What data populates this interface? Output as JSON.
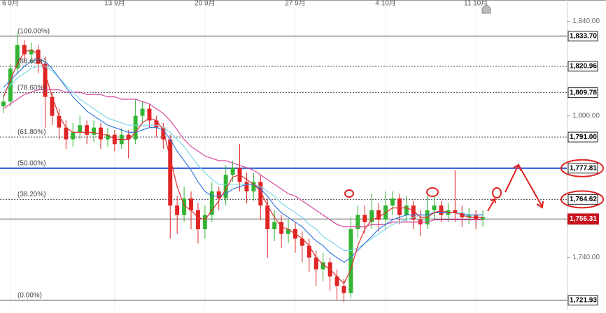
{
  "chart_data": {
    "type": "candlestick",
    "categories": [
      null,
      "6 9月",
      null,
      null,
      null,
      null,
      null,
      null,
      null,
      null,
      null,
      null,
      null,
      null,
      null,
      null,
      "13 9月",
      null,
      null,
      null,
      null,
      null,
      null,
      null,
      null,
      null,
      null,
      null,
      null,
      "20 9月",
      null,
      null,
      null,
      null,
      null,
      null,
      null,
      null,
      null,
      null,
      null,
      null,
      "27 9月",
      null,
      null,
      null,
      null,
      null,
      null,
      null,
      null,
      null,
      null,
      null,
      null,
      "4 10月",
      null,
      null,
      null,
      null,
      null,
      null,
      null,
      null,
      null,
      null,
      null,
      null,
      "11 10月",
      null
    ],
    "open": [
      1804,
      1806,
      1820,
      1830,
      1826,
      1828,
      1822,
      1808,
      1800,
      1795,
      1790,
      1793,
      1796,
      1792,
      1795,
      1790,
      1792,
      1788,
      1792,
      1790,
      1800,
      1803,
      1798,
      1795,
      1790,
      1762,
      1758,
      1765,
      1760,
      1752,
      1758,
      1768,
      1765,
      1775,
      1778,
      1772,
      1768,
      1772,
      1762,
      1752,
      1755,
      1750,
      1752,
      1748,
      1745,
      1740,
      1735,
      1738,
      1732,
      1728,
      1725,
      1752,
      1758,
      1755,
      1760,
      1756,
      1762,
      1765,
      1758,
      1762,
      1756,
      1754,
      1760,
      1762,
      1758,
      1760,
      1759,
      1757,
      1758,
      1756
    ],
    "high": [
      1809,
      1822,
      1835,
      1832,
      1831,
      1830,
      1825,
      1810,
      1803,
      1798,
      1797,
      1800,
      1798,
      1798,
      1797,
      1795,
      1794,
      1795,
      1794,
      1807,
      1806,
      1805,
      1800,
      1797,
      1792,
      1766,
      1770,
      1768,
      1763,
      1762,
      1772,
      1770,
      1779,
      1781,
      1788,
      1776,
      1776,
      1775,
      1765,
      1760,
      1758,
      1756,
      1755,
      1751,
      1748,
      1743,
      1742,
      1740,
      1735,
      1731,
      1757,
      1762,
      1762,
      1767,
      1763,
      1768,
      1768,
      1767,
      1766,
      1764,
      1760,
      1766,
      1766,
      1764,
      1763,
      1777,
      1762,
      1761,
      1760,
      1760
    ],
    "low": [
      1801,
      1804,
      1818,
      1823,
      1822,
      1818,
      1795,
      1796,
      1790,
      1786,
      1787,
      1790,
      1788,
      1789,
      1786,
      1787,
      1785,
      1786,
      1782,
      1788,
      1797,
      1795,
      1791,
      1786,
      1748,
      1750,
      1755,
      1752,
      1746,
      1748,
      1755,
      1760,
      1762,
      1772,
      1768,
      1763,
      1764,
      1756,
      1740,
      1747,
      1744,
      1746,
      1742,
      1738,
      1734,
      1728,
      1730,
      1726,
      1722,
      1721,
      1723,
      1748,
      1750,
      1752,
      1751,
      1752,
      1758,
      1754,
      1755,
      1752,
      1749,
      1752,
      1756,
      1755,
      1755,
      1755,
      1753,
      1754,
      1752,
      1753
    ],
    "close": [
      1806,
      1820,
      1830,
      1826,
      1828,
      1822,
      1808,
      1800,
      1795,
      1790,
      1793,
      1796,
      1792,
      1795,
      1790,
      1792,
      1788,
      1792,
      1790,
      1800,
      1803,
      1798,
      1795,
      1790,
      1762,
      1758,
      1765,
      1760,
      1752,
      1758,
      1768,
      1765,
      1775,
      1778,
      1772,
      1768,
      1772,
      1762,
      1752,
      1755,
      1750,
      1752,
      1748,
      1745,
      1740,
      1735,
      1738,
      1732,
      1728,
      1725,
      1752,
      1758,
      1755,
      1760,
      1756,
      1762,
      1765,
      1758,
      1762,
      1756,
      1754,
      1760,
      1762,
      1758,
      1760,
      1759,
      1757,
      1758,
      1756,
      1757
    ],
    "up_color": "#33b533",
    "down_color": "#e02424",
    "series": [
      {
        "color": "#d94aa0",
        "values": [
          1803,
          1805,
          1807,
          1809,
          1810,
          1811,
          1811,
          1811,
          1811,
          1810,
          1810,
          1810,
          1809,
          1809,
          1809,
          1808,
          1808,
          1807,
          1807,
          1807,
          1806,
          1805,
          1803,
          1801,
          1798,
          1794,
          1790,
          1787,
          1785,
          1783,
          1782,
          1781,
          1781,
          1780,
          1779,
          1778,
          1777,
          1775,
          1773,
          1771,
          1769,
          1767,
          1766,
          1764,
          1762,
          1760,
          1758,
          1756,
          1754,
          1753,
          1753,
          1753,
          1753,
          1754,
          1754,
          1754,
          1755,
          1755,
          1755,
          1755,
          1755,
          1755,
          1756,
          1756,
          1756,
          1756,
          1756,
          1756,
          1756,
          1756
        ]
      },
      {
        "color": "#7fd8e8",
        "values": [
          1810,
          1813,
          1816,
          1818,
          1820,
          1821,
          1821,
          1819,
          1816,
          1813,
          1810,
          1807,
          1805,
          1803,
          1801,
          1799,
          1798,
          1797,
          1796,
          1796,
          1796,
          1796,
          1796,
          1795,
          1793,
          1790,
          1787,
          1783,
          1779,
          1776,
          1773,
          1771,
          1771,
          1771,
          1771,
          1771,
          1771,
          1770,
          1768,
          1766,
          1763,
          1761,
          1759,
          1757,
          1754,
          1752,
          1749,
          1747,
          1745,
          1743,
          1743,
          1744,
          1746,
          1748,
          1750,
          1752,
          1754,
          1755,
          1756,
          1757,
          1758,
          1758,
          1759,
          1759,
          1759,
          1759,
          1759,
          1758,
          1758,
          1758
        ]
      },
      {
        "color": "#3a7be0",
        "values": [
          1812,
          1815,
          1818,
          1821,
          1823,
          1824,
          1823,
          1820,
          1816,
          1812,
          1808,
          1805,
          1802,
          1800,
          1798,
          1796,
          1795,
          1794,
          1793,
          1793,
          1794,
          1795,
          1795,
          1794,
          1790,
          1785,
          1781,
          1777,
          1772,
          1768,
          1766,
          1766,
          1767,
          1769,
          1770,
          1771,
          1771,
          1769,
          1766,
          1762,
          1759,
          1757,
          1755,
          1753,
          1750,
          1747,
          1745,
          1742,
          1740,
          1738,
          1740,
          1743,
          1746,
          1749,
          1752,
          1754,
          1756,
          1757,
          1758,
          1758,
          1758,
          1758,
          1759,
          1759,
          1759,
          1759,
          1758,
          1758,
          1758,
          1758
        ]
      },
      {
        "color": "#e03030",
        "values": [
          1808,
          1815,
          1822,
          1827,
          1828,
          1826,
          1818,
          1808,
          1800,
          1795,
          1793,
          1793,
          1793,
          1793,
          1792,
          1792,
          1790,
          1790,
          1790,
          1793,
          1797,
          1799,
          1798,
          1794,
          1782,
          1770,
          1762,
          1760,
          1757,
          1756,
          1760,
          1764,
          1769,
          1774,
          1775,
          1773,
          1771,
          1768,
          1762,
          1757,
          1753,
          1752,
          1750,
          1748,
          1745,
          1740,
          1737,
          1735,
          1732,
          1729,
          1735,
          1745,
          1752,
          1756,
          1757,
          1759,
          1761,
          1761,
          1761,
          1760,
          1757,
          1757,
          1759,
          1760,
          1759,
          1759,
          1758,
          1757,
          1757,
          1757
        ]
      }
    ],
    "levels": [
      {
        "pct_label": "(100.00%)",
        "value": 1833.7,
        "value_label": "1,833.70",
        "style": "solid",
        "color": "#444444"
      },
      {
        "pct_label": "(88.60%)",
        "value": 1820.96,
        "value_label": "1,820.96",
        "style": "dashed",
        "color": "#444444"
      },
      {
        "pct_label": "(78.60%)",
        "value": 1809.78,
        "value_label": "1,809.78",
        "style": "dashed",
        "color": "#444444"
      },
      {
        "pct_label": "(61.80%)",
        "value": 1791.0,
        "value_label": "1,791.00",
        "style": "dashed",
        "color": "#444444"
      },
      {
        "pct_label": "(50.00%)",
        "value": 1777.81,
        "value_label": "1,777.81",
        "style": "solid",
        "color": "#1f4fd6"
      },
      {
        "pct_label": "(38.20%)",
        "value": 1764.62,
        "value_label": "1,764.62",
        "style": "dashed",
        "color": "#444444"
      },
      {
        "pct_label": "(0.00%)",
        "value": 1721.93,
        "value_label": "1,721.93",
        "style": "solid",
        "color": "#444444"
      }
    ],
    "last_price": {
      "value": 1756.31,
      "label": "1,756.31",
      "color": "#c8141e"
    },
    "ylim": [
      1718,
      1849
    ],
    "yticks": [
      {
        "value": 1840,
        "label": "1,840.00"
      },
      {
        "value": 1800,
        "label": "1,800.00"
      },
      {
        "value": 1740,
        "label": "1,740.00"
      }
    ]
  }
}
